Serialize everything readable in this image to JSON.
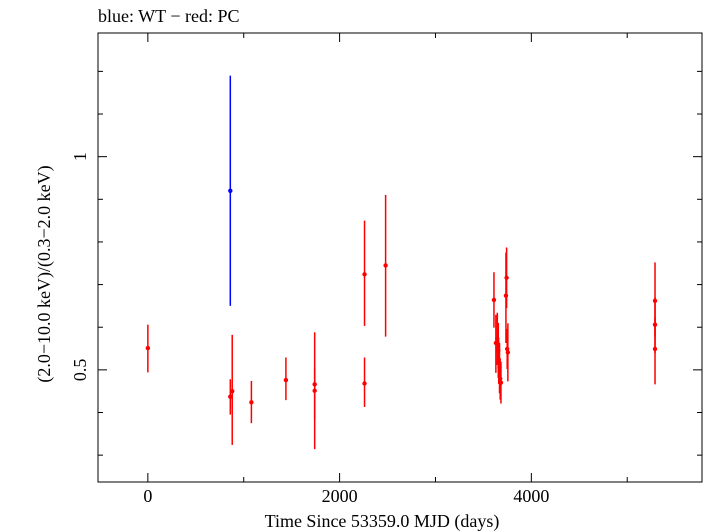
{
  "chart_data": {
    "type": "scatter",
    "title": "blue: WT − red: PC",
    "xlabel": "Time Since 53359.0 MJD (days)",
    "ylabel": "(2.0−10.0 keV)/(0.3−2.0 keV)",
    "xlim": [
      -520,
      5780
    ],
    "ylim": [
      0.237,
      1.29
    ],
    "x_ticks": [
      0,
      2000,
      4000
    ],
    "x_tick_labels": [
      "0",
      "2000",
      "4000"
    ],
    "y_ticks": [
      0.5,
      1.0
    ],
    "y_tick_labels": [
      "0.5",
      "1"
    ],
    "grid": false,
    "series": [
      {
        "color": "#0000ff",
        "points": [
          {
            "x": 860,
            "y": 0.92,
            "ylo": 0.65,
            "yhi": 1.19
          }
        ]
      },
      {
        "color": "#ff0000",
        "points": [
          {
            "x": 0,
            "y": 0.551,
            "ylo": 0.494,
            "yhi": 0.606
          },
          {
            "x": 860,
            "y": 0.437,
            "ylo": 0.395,
            "yhi": 0.478
          },
          {
            "x": 880,
            "y": 0.45,
            "ylo": 0.324,
            "yhi": 0.582
          },
          {
            "x": 1080,
            "y": 0.424,
            "ylo": 0.375,
            "yhi": 0.474
          },
          {
            "x": 1440,
            "y": 0.476,
            "ylo": 0.429,
            "yhi": 0.529
          },
          {
            "x": 1740,
            "y": 0.466,
            "ylo": 0.384,
            "yhi": 0.588
          },
          {
            "x": 1740,
            "y": 0.451,
            "ylo": 0.314,
            "yhi": 0.505
          },
          {
            "x": 2260,
            "y": 0.724,
            "ylo": 0.603,
            "yhi": 0.85
          },
          {
            "x": 2260,
            "y": 0.468,
            "ylo": 0.413,
            "yhi": 0.529
          },
          {
            "x": 2480,
            "y": 0.745,
            "ylo": 0.578,
            "yhi": 0.91
          },
          {
            "x": 3610,
            "y": 0.664,
            "ylo": 0.599,
            "yhi": 0.729
          },
          {
            "x": 3630,
            "y": 0.563,
            "ylo": 0.493,
            "yhi": 0.629
          },
          {
            "x": 3645,
            "y": 0.573,
            "ylo": 0.511,
            "yhi": 0.634
          },
          {
            "x": 3655,
            "y": 0.546,
            "ylo": 0.481,
            "yhi": 0.61
          },
          {
            "x": 3660,
            "y": 0.518,
            "ylo": 0.467,
            "yhi": 0.569
          },
          {
            "x": 3668,
            "y": 0.506,
            "ylo": 0.445,
            "yhi": 0.563
          },
          {
            "x": 3675,
            "y": 0.479,
            "ylo": 0.43,
            "yhi": 0.527
          },
          {
            "x": 3683,
            "y": 0.47,
            "ylo": 0.421,
            "yhi": 0.519
          },
          {
            "x": 3735,
            "y": 0.674,
            "ylo": 0.563,
            "yhi": 0.775
          },
          {
            "x": 3742,
            "y": 0.716,
            "ylo": 0.645,
            "yhi": 0.787
          },
          {
            "x": 3748,
            "y": 0.549,
            "ylo": 0.502,
            "yhi": 0.596
          },
          {
            "x": 3755,
            "y": 0.541,
            "ylo": 0.473,
            "yhi": 0.609
          },
          {
            "x": 5290,
            "y": 0.662,
            "ylo": 0.578,
            "yhi": 0.752
          },
          {
            "x": 5290,
            "y": 0.606,
            "ylo": 0.539,
            "yhi": 0.67
          },
          {
            "x": 5290,
            "y": 0.549,
            "ylo": 0.466,
            "yhi": 0.624
          }
        ]
      }
    ]
  }
}
